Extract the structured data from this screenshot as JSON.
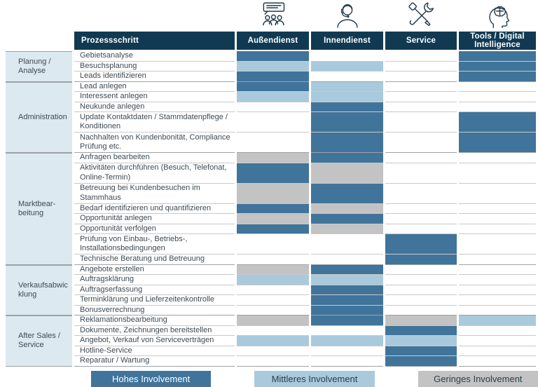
{
  "header": {
    "process_label": "Prozessschritt"
  },
  "columns": [
    {
      "id": "aussendienst",
      "label": "Außendienst",
      "icon": "presentation-audience-icon"
    },
    {
      "id": "innendienst",
      "label": "Innendienst",
      "icon": "headset-agent-icon"
    },
    {
      "id": "service",
      "label": "Service",
      "icon": "crossed-tools-icon"
    },
    {
      "id": "tools",
      "label": "Tools / Digital Intelligence",
      "icon": "head-brain-icon"
    }
  ],
  "sections": [
    {
      "label": "Planung / Analyse",
      "rows": [
        {
          "label": "Gebietsanalyse",
          "lines": 1,
          "involvement": {
            "aussendienst": "high",
            "innendienst": "none",
            "service": "none",
            "tools": "high"
          }
        },
        {
          "label": "Besuchsplanung",
          "lines": 1,
          "involvement": {
            "aussendienst": "mid",
            "innendienst": "mid",
            "service": "none",
            "tools": "high"
          }
        },
        {
          "label": "Leads identifizieren",
          "lines": 1,
          "involvement": {
            "aussendienst": "high",
            "innendienst": "none",
            "service": "none",
            "tools": "high"
          }
        }
      ]
    },
    {
      "label": "Administration",
      "rows": [
        {
          "label": "Lead anlegen",
          "lines": 1,
          "involvement": {
            "aussendienst": "high",
            "innendienst": "mid",
            "service": "none",
            "tools": "none"
          }
        },
        {
          "label": "Interessent anlegen",
          "lines": 1,
          "involvement": {
            "aussendienst": "mid",
            "innendienst": "mid",
            "service": "none",
            "tools": "none"
          }
        },
        {
          "label": "Neukunde anlegen",
          "lines": 1,
          "involvement": {
            "aussendienst": "none",
            "innendienst": "high",
            "service": "none",
            "tools": "none"
          }
        },
        {
          "label": "Update Kontaktdaten / Stammdatenpflege / Konditionen",
          "lines": 2,
          "involvement": {
            "aussendienst": "none",
            "innendienst": "high",
            "service": "none",
            "tools": "high"
          }
        },
        {
          "label": "Nachhalten von Kundenbonität, Compliance Prüfung etc.",
          "lines": 2,
          "involvement": {
            "aussendienst": "none",
            "innendienst": "high",
            "service": "none",
            "tools": "high"
          }
        }
      ]
    },
    {
      "label": "Marktbear-beitung",
      "rows": [
        {
          "label": "Anfragen bearbeiten",
          "lines": 1,
          "involvement": {
            "aussendienst": "low",
            "innendienst": "high",
            "service": "none",
            "tools": "none"
          }
        },
        {
          "label": "Aktivitäten durchführen (Besuch, Telefonat, Online-Termin)",
          "lines": 2,
          "involvement": {
            "aussendienst": "high",
            "innendienst": "low",
            "service": "none",
            "tools": "none"
          }
        },
        {
          "label": "Betreuung bei Kundenbesuchen im Stammhaus",
          "lines": 2,
          "involvement": {
            "aussendienst": "low",
            "innendienst": "high",
            "service": "none",
            "tools": "none"
          }
        },
        {
          "label": "Bedarf identifizieren und quantifizieren",
          "lines": 1,
          "involvement": {
            "aussendienst": "high",
            "innendienst": "low",
            "service": "none",
            "tools": "none"
          }
        },
        {
          "label": "Opportunität anlegen",
          "lines": 1,
          "involvement": {
            "aussendienst": "low",
            "innendienst": "high",
            "service": "none",
            "tools": "none"
          }
        },
        {
          "label": "Opportunität verfolgen",
          "lines": 1,
          "involvement": {
            "aussendienst": "high",
            "innendienst": "low",
            "service": "none",
            "tools": "none"
          }
        },
        {
          "label": "Prüfung von Einbau-, Betriebs-, Installationsbedingungen",
          "lines": 2,
          "involvement": {
            "aussendienst": "none",
            "innendienst": "none",
            "service": "high",
            "tools": "none"
          }
        },
        {
          "label": "Technische Beratung und Betreuung",
          "lines": 1,
          "involvement": {
            "aussendienst": "none",
            "innendienst": "none",
            "service": "high",
            "tools": "none"
          }
        }
      ]
    },
    {
      "label": "Verkaufsabwicklung",
      "rows": [
        {
          "label": "Angebote erstellen",
          "lines": 1,
          "involvement": {
            "aussendienst": "low",
            "innendienst": "high",
            "service": "none",
            "tools": "none"
          }
        },
        {
          "label": "Auftragsklärung",
          "lines": 1,
          "involvement": {
            "aussendienst": "mid",
            "innendienst": "mid",
            "service": "none",
            "tools": "none"
          }
        },
        {
          "label": "Auftragserfassung",
          "lines": 1,
          "involvement": {
            "aussendienst": "none",
            "innendienst": "high",
            "service": "none",
            "tools": "none"
          }
        },
        {
          "label": "Terminklärung und Lieferzeitenkontrolle",
          "lines": 1,
          "involvement": {
            "aussendienst": "none",
            "innendienst": "high",
            "service": "none",
            "tools": "none"
          }
        },
        {
          "label": "Bonusverrechnung",
          "lines": 1,
          "involvement": {
            "aussendienst": "none",
            "innendienst": "high",
            "service": "none",
            "tools": "none"
          }
        }
      ]
    },
    {
      "label": "After Sales / Service",
      "rows": [
        {
          "label": "Reklamationsbearbeitung",
          "lines": 1,
          "involvement": {
            "aussendienst": "low",
            "innendienst": "high",
            "service": "low",
            "tools": "mid"
          }
        },
        {
          "label": "Dokumente, Zeichnungen bereitstellen",
          "lines": 1,
          "involvement": {
            "aussendienst": "none",
            "innendienst": "none",
            "service": "high",
            "tools": "none"
          }
        },
        {
          "label": "Angebot, Verkauf von Serviceverträgen",
          "lines": 1,
          "involvement": {
            "aussendienst": "mid",
            "innendienst": "mid",
            "service": "mid",
            "tools": "none"
          }
        },
        {
          "label": "Hotline-Service",
          "lines": 1,
          "involvement": {
            "aussendienst": "none",
            "innendienst": "none",
            "service": "high",
            "tools": "none"
          }
        },
        {
          "label": "Reparatur / Wartung",
          "lines": 1,
          "involvement": {
            "aussendienst": "none",
            "innendienst": "none",
            "service": "high",
            "tools": "none"
          }
        }
      ]
    }
  ],
  "legend": [
    {
      "label": "Hohes Involvement",
      "level": "high",
      "text_color": "#FFFFFF"
    },
    {
      "label": "Mittleres Involvement",
      "level": "mid",
      "text_color": "#2B3D4A"
    },
    {
      "label": "Geringes Involvement",
      "level": "low",
      "text_color": "#2B3D4A"
    }
  ],
  "colors": {
    "high": "#40749B",
    "mid": "#A9CADD",
    "low": "#C3C3C3",
    "none": "#FFFFFF",
    "header_background": "#113A52",
    "header_text": "#FFFFFF",
    "category_background": "#DCE9F0",
    "row_line": "#C9C9C9",
    "section_line": "#9CA2A6",
    "icon_stroke": "#223B4D",
    "body_text": "#3E4A53"
  }
}
